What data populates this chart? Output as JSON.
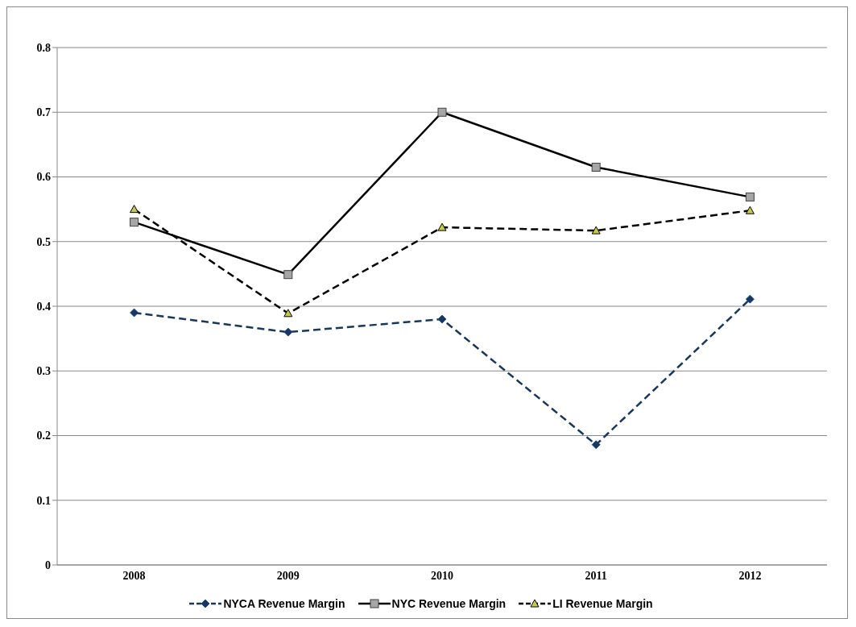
{
  "chart_data": {
    "type": "line",
    "categories": [
      "2008",
      "2009",
      "2010",
      "2011",
      "2012"
    ],
    "series": [
      {
        "name": "NYCA Revenue Margin",
        "color": "#17375e",
        "marker": "diamond",
        "line_style": "dashed",
        "values": [
          0.39,
          0.36,
          0.38,
          0.186,
          0.411
        ]
      },
      {
        "name": "NYC Revenue Margin",
        "color": "#000000",
        "marker": "square",
        "line_style": "solid",
        "values": [
          0.53,
          0.449,
          0.7,
          0.615,
          0.569
        ]
      },
      {
        "name": "LI Revenue Margin",
        "color": "#000000",
        "marker": "triangle",
        "line_style": "dashed",
        "values": [
          0.55,
          0.389,
          0.522,
          0.517,
          0.548
        ]
      }
    ],
    "ylim": [
      0,
      0.8
    ],
    "yticks": [
      0,
      0.1,
      0.2,
      0.3,
      0.4,
      0.5,
      0.6,
      0.7,
      0.8
    ],
    "grid": "y",
    "legend": "bottom"
  }
}
